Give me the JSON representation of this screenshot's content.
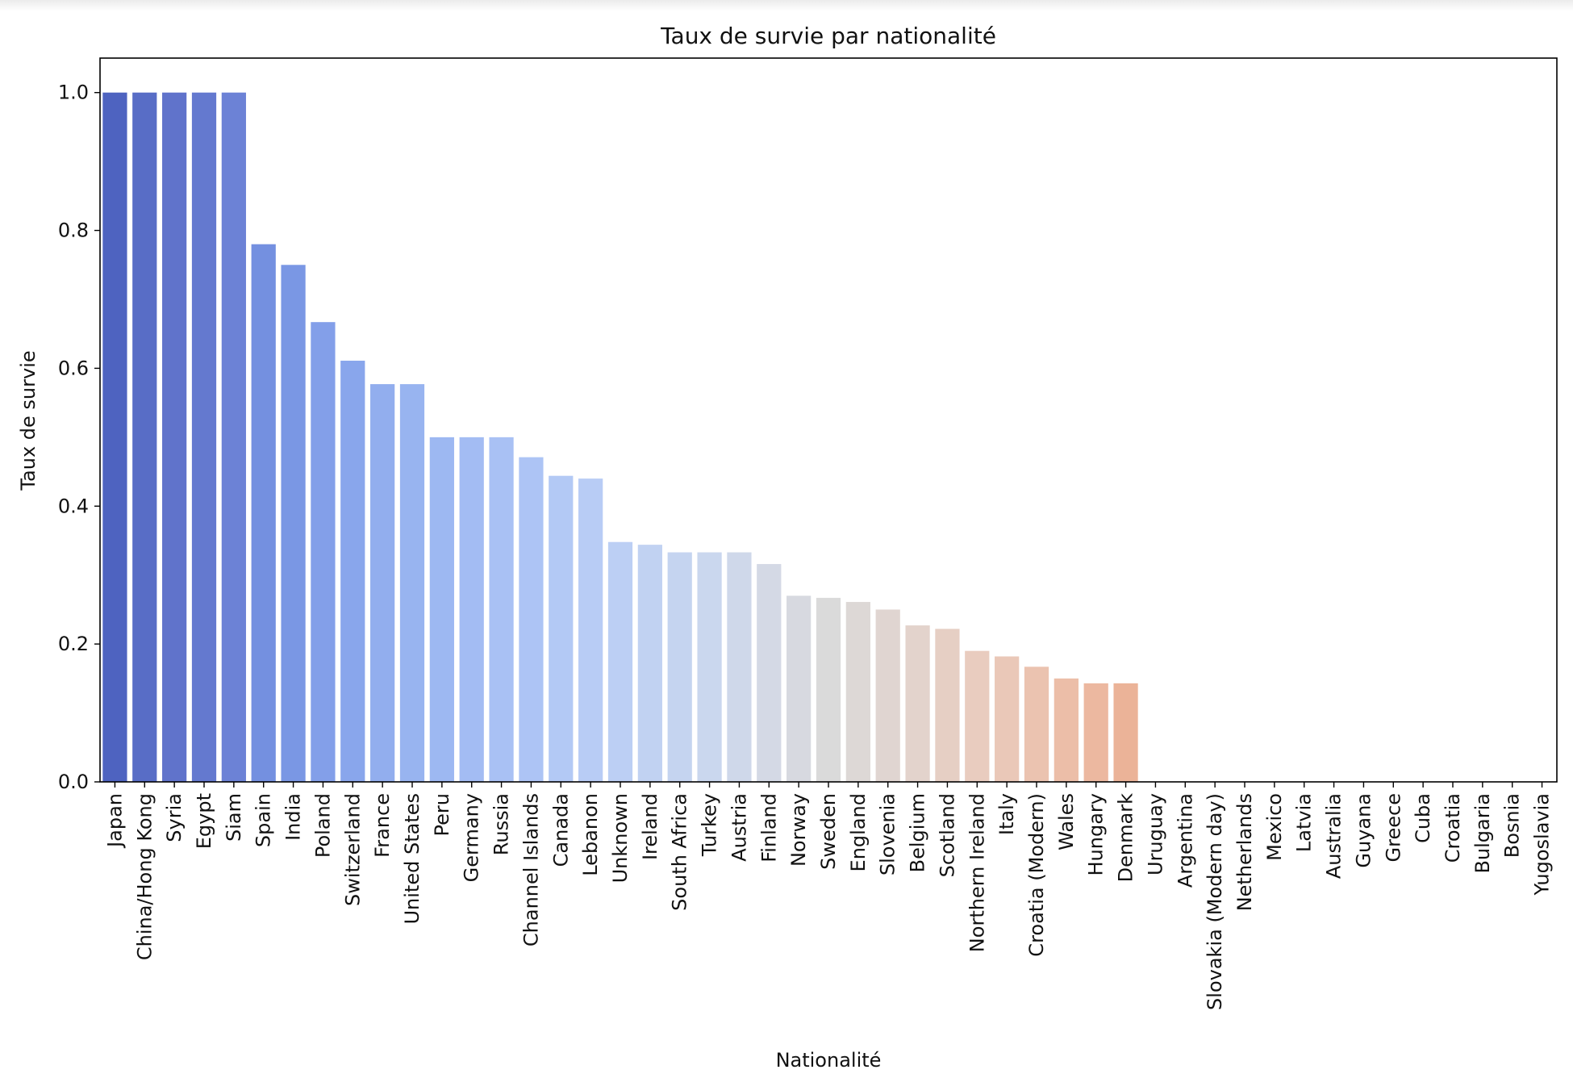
{
  "chart_data": {
    "type": "bar",
    "title": "Taux de survie par nationalité",
    "xlabel": "Nationalité",
    "ylabel": "Taux de survie",
    "ylim": [
      0,
      1.05
    ],
    "yticks": [
      "0.0",
      "0.2",
      "0.4",
      "0.6",
      "0.8",
      "1.0"
    ],
    "grid": false,
    "colormap": "coolwarm",
    "categories": [
      "Japan",
      "China/Hong Kong",
      "Syria",
      "Egypt",
      "Siam",
      "Spain",
      "India",
      "Poland",
      "Switzerland",
      "France",
      "United States",
      "Peru",
      "Germany",
      "Russia",
      "Channel Islands",
      "Canada",
      "Lebanon",
      "Unknown",
      "Ireland",
      "South Africa",
      "Turkey",
      "Austria",
      "Finland",
      "Norway",
      "Sweden",
      "England",
      "Slovenia",
      "Belgium",
      "Scotland",
      "Northern Ireland",
      "Italy",
      "Croatia (Modern)",
      "Wales",
      "Hungary",
      "Denmark",
      "Uruguay",
      "Argentina",
      "Slovakia (Modern day)",
      "Netherlands",
      "Mexico",
      "Latvia",
      "Australia",
      "Guyana",
      "Greece",
      "Cuba",
      "Croatia",
      "Bulgaria",
      "Bosnia",
      "Yugoslavia"
    ],
    "values": [
      1.0,
      1.0,
      1.0,
      1.0,
      1.0,
      0.78,
      0.75,
      0.667,
      0.611,
      0.577,
      0.577,
      0.5,
      0.5,
      0.5,
      0.471,
      0.444,
      0.44,
      0.348,
      0.344,
      0.333,
      0.333,
      0.333,
      0.316,
      0.27,
      0.267,
      0.261,
      0.25,
      0.227,
      0.222,
      0.19,
      0.182,
      0.167,
      0.15,
      0.143,
      0.143,
      0,
      0,
      0,
      0,
      0,
      0,
      0,
      0,
      0,
      0,
      0,
      0,
      0,
      0
    ],
    "colors": [
      "#4e63c0",
      "#586dc6",
      "#6073cb",
      "#6479cf",
      "#6c82d6",
      "#7490e0",
      "#7a97e4",
      "#839fe9",
      "#89a6ec",
      "#92aeee",
      "#98b4f0",
      "#9db8f2",
      "#a3bcf3",
      "#a9c1f4",
      "#adc4f5",
      "#b3c9f5",
      "#b8ccf5",
      "#bccff4",
      "#c1d2f2",
      "#c5d4f0",
      "#cad7ee",
      "#cfd8ea",
      "#d4d9e5",
      "#d7d9e0",
      "#dadada",
      "#ddd8d6",
      "#e0d5d1",
      "#e3d3cc",
      "#e6cfc4",
      "#e9ccbf",
      "#eac8b8",
      "#ebc3b0",
      "#ecbea8",
      "#ecb8a0",
      "#ebb398",
      "#ebb398",
      "#ebb398",
      "#ebb398",
      "#ebb398",
      "#ebb398",
      "#ebb398",
      "#ebb398",
      "#ebb398",
      "#ebb398",
      "#ebb398",
      "#ebb398",
      "#ebb398",
      "#ebb398",
      "#ebb398"
    ]
  }
}
